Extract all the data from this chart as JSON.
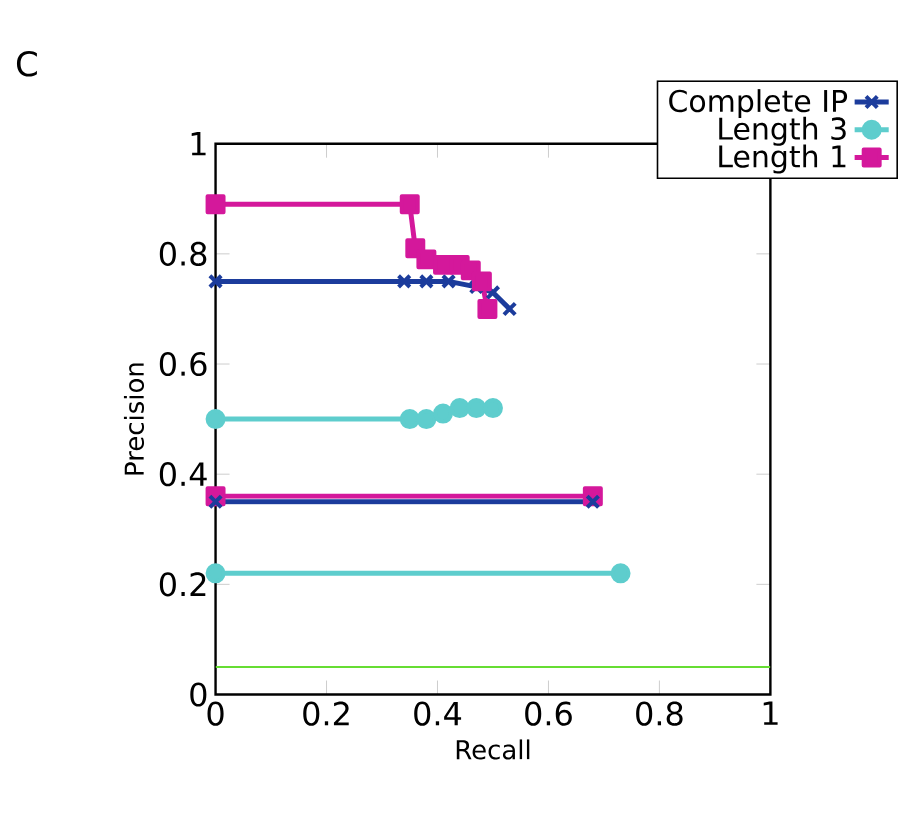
{
  "chart_data": {
    "type": "line",
    "xlabel": "Recall",
    "ylabel": "Precision",
    "annotations": [
      "C"
    ],
    "xlim": [
      0,
      1
    ],
    "ylim": [
      0,
      1
    ],
    "xticks": [
      0,
      0.2,
      0.4,
      0.6,
      0.8,
      1
    ],
    "yticks": [
      0,
      0.2,
      0.4,
      0.6,
      0.8,
      1
    ],
    "legend": "top right",
    "grid": false,
    "line_style": "solid",
    "series": [
      {
        "color": "#d4189b",
        "marker": "square",
        "x": [
          0,
          0.68
        ],
        "values": [
          0.36,
          0.36
        ]
      },
      {
        "color": "#1c3c9c",
        "marker": "cross",
        "x": [
          0,
          0.68
        ],
        "values": [
          0.35,
          0.35
        ]
      },
      {
        "color": "#5ecdcd",
        "marker": "circle",
        "x": [
          0,
          0.73
        ],
        "values": [
          0.22,
          0.22
        ]
      },
      {
        "name": "Complete IP",
        "color": "#1c3c9c",
        "marker": "cross",
        "x": [
          0,
          0.34,
          0.38,
          0.42,
          0.47,
          0.5,
          0.53
        ],
        "values": [
          0.75,
          0.75,
          0.75,
          0.75,
          0.74,
          0.73,
          0.7
        ]
      },
      {
        "name": "Length 3",
        "color": "#5ecdcd",
        "marker": "circle",
        "x": [
          0,
          0.35,
          0.38,
          0.41,
          0.44,
          0.47,
          0.5
        ],
        "values": [
          0.5,
          0.5,
          0.5,
          0.51,
          0.52,
          0.52,
          0.52
        ]
      },
      {
        "name": "Length 1",
        "color": "#d4189b",
        "marker": "square",
        "x": [
          0,
          0.35,
          0.36,
          0.38,
          0.41,
          0.44,
          0.46,
          0.48,
          0.49
        ],
        "values": [
          0.89,
          0.89,
          0.81,
          0.79,
          0.78,
          0.78,
          0.77,
          0.75,
          0.7
        ]
      }
    ],
    "ref_lines": [
      {
        "axis": "y",
        "value": 0.05,
        "color": "#66dd33"
      }
    ]
  }
}
